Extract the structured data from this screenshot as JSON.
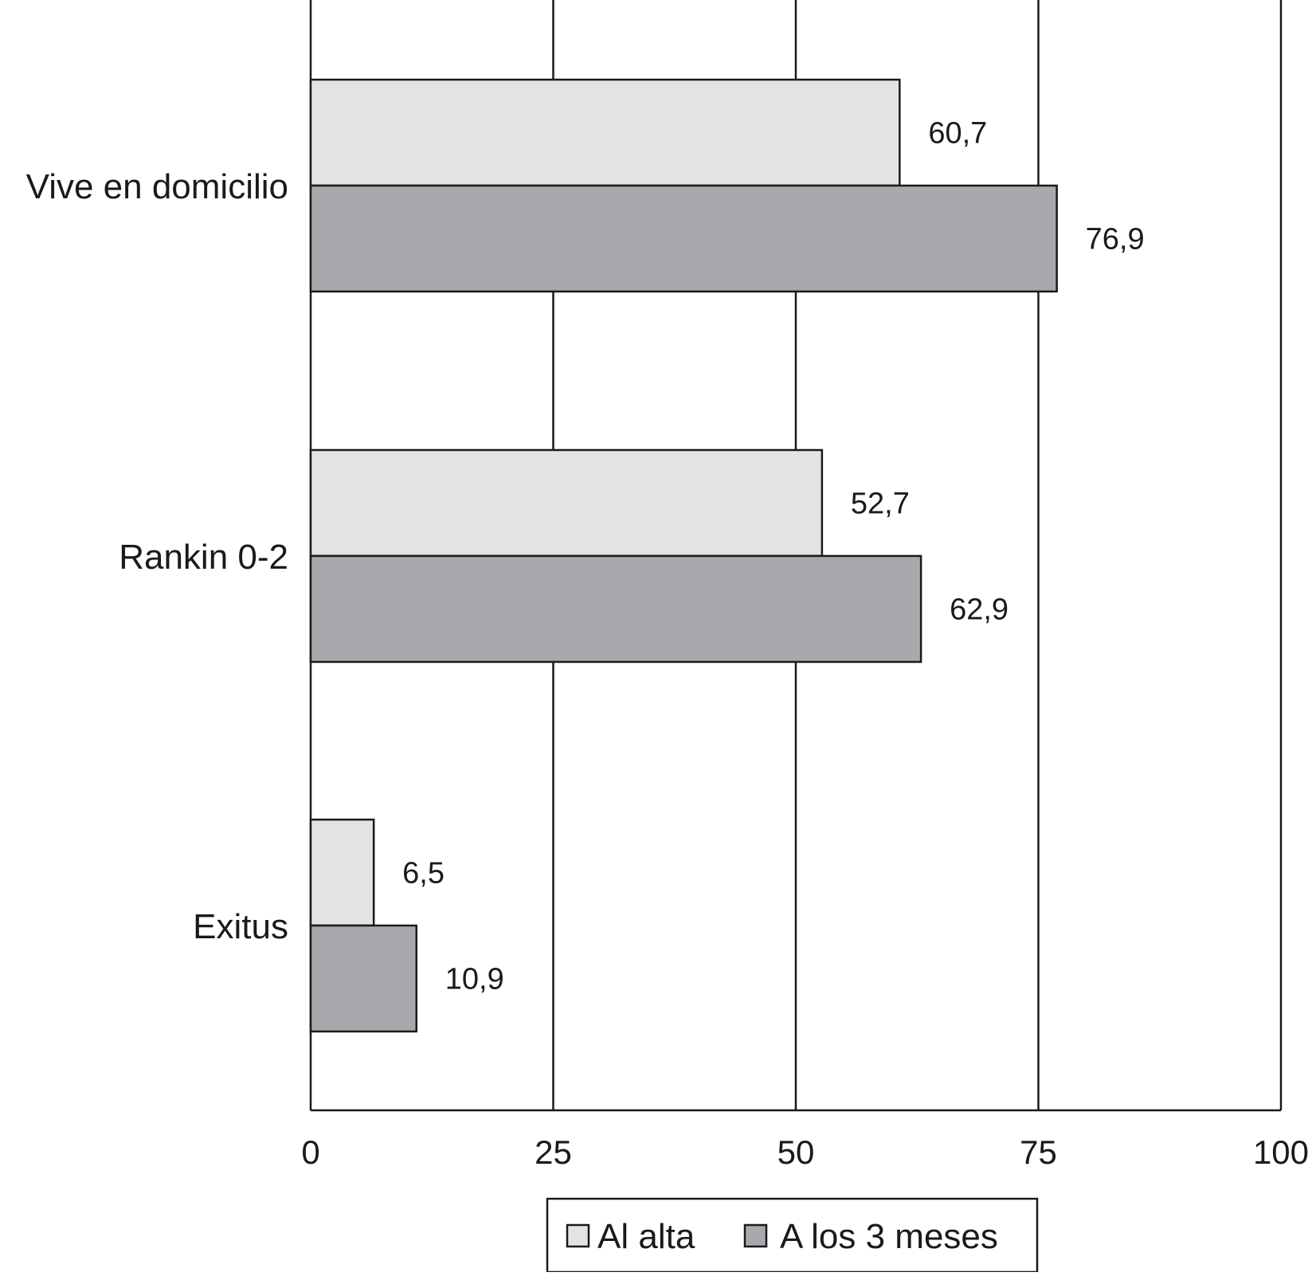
{
  "chart_data": {
    "type": "bar",
    "orientation": "horizontal",
    "categories": [
      "Vive en domicilio",
      "Rankin 0-2",
      "Exitus"
    ],
    "series": [
      {
        "name": "Al alta",
        "values": [
          60.7,
          52.7,
          6.5
        ],
        "value_labels": [
          "60,7",
          "52,7",
          "6,5"
        ],
        "color": "#e2e3e5"
      },
      {
        "name": "A los 3 meses",
        "values": [
          76.9,
          62.9,
          10.9
        ],
        "value_labels": [
          "76,9",
          "62,9",
          "10,9"
        ],
        "color": "#a8a9ac"
      }
    ],
    "xlim": [
      0,
      100
    ],
    "xticks": [
      0,
      25,
      50,
      75,
      100
    ],
    "xtick_labels": [
      "0",
      "25",
      "50",
      "75",
      "100"
    ],
    "title": "",
    "xlabel": "",
    "ylabel": "",
    "grid": "vertical",
    "legend_position": "bottom"
  }
}
